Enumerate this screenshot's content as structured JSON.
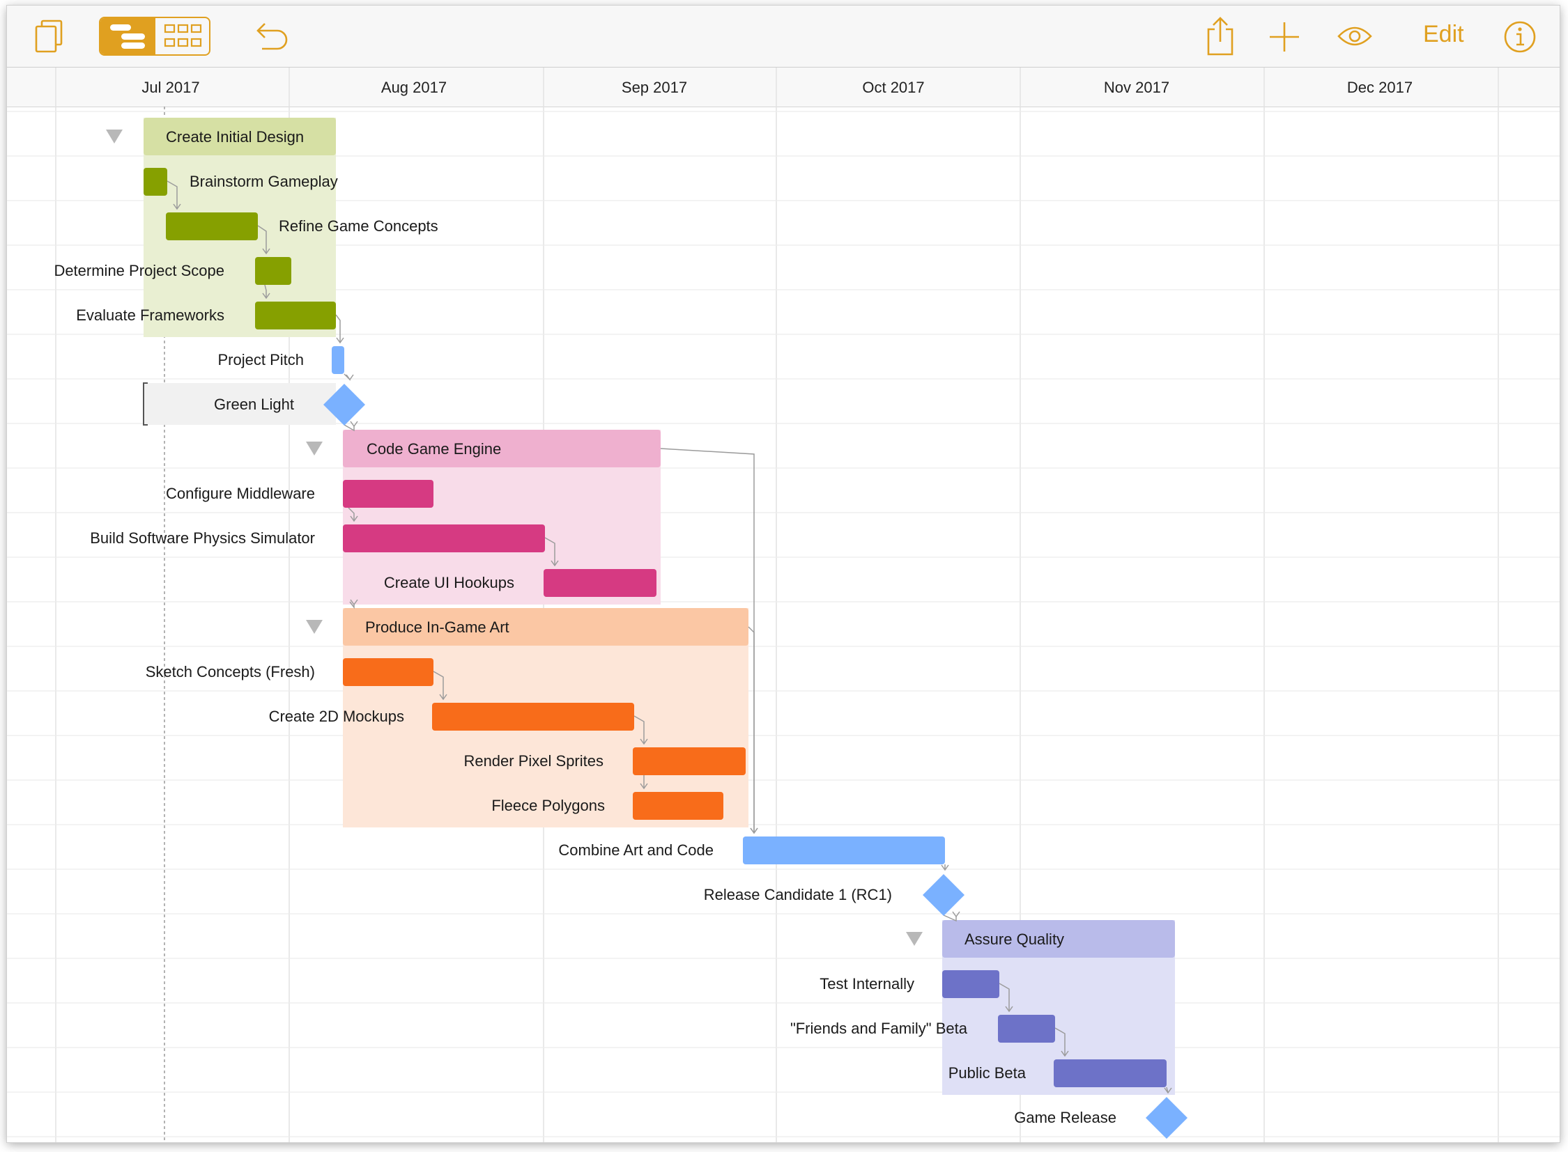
{
  "toolbar": {
    "edit_label": "Edit",
    "accent_color": "#e0a020",
    "icons": [
      "documents-icon",
      "outline-view-icon",
      "network-view-icon",
      "undo-icon",
      "share-icon",
      "add-icon",
      "view-icon",
      "inspector-icon"
    ]
  },
  "months": [
    "Jul 2017",
    "Aug 2017",
    "Sep 2017",
    "Oct 2017",
    "Nov 2017",
    "Dec 2017"
  ],
  "colors": {
    "design": "#86a000",
    "engine": "#d63a82",
    "art": "#f86c1a",
    "quality": "#6d72c8",
    "milestone": "#7ab1ff"
  },
  "tasks": [
    {
      "label": "Create Initial Design",
      "kind": "group"
    },
    {
      "label": "Brainstorm Gameplay",
      "kind": "task"
    },
    {
      "label": "Refine Game Concepts",
      "kind": "task"
    },
    {
      "label": "Determine Project Scope",
      "kind": "task"
    },
    {
      "label": "Evaluate Frameworks",
      "kind": "task"
    },
    {
      "label": "Project Pitch",
      "kind": "task"
    },
    {
      "label": "Green Light",
      "kind": "milestone"
    },
    {
      "label": "Code Game Engine",
      "kind": "group"
    },
    {
      "label": "Configure Middleware",
      "kind": "task"
    },
    {
      "label": "Build Software Physics Simulator",
      "kind": "task"
    },
    {
      "label": "Create UI Hookups",
      "kind": "task"
    },
    {
      "label": "Produce In-Game Art",
      "kind": "group"
    },
    {
      "label": "Sketch Concepts (Fresh)",
      "kind": "task"
    },
    {
      "label": "Create 2D Mockups",
      "kind": "task"
    },
    {
      "label": "Render Pixel Sprites",
      "kind": "task"
    },
    {
      "label": "Fleece Polygons",
      "kind": "task"
    },
    {
      "label": "Combine Art and Code",
      "kind": "task"
    },
    {
      "label": "Release Candidate 1 (RC1)",
      "kind": "milestone"
    },
    {
      "label": "Assure Quality",
      "kind": "group"
    },
    {
      "label": "Test Internally",
      "kind": "task"
    },
    {
      "label": "\"Friends and Family\" Beta",
      "kind": "task"
    },
    {
      "label": "Public Beta",
      "kind": "task"
    },
    {
      "label": "Game Release",
      "kind": "milestone"
    }
  ]
}
